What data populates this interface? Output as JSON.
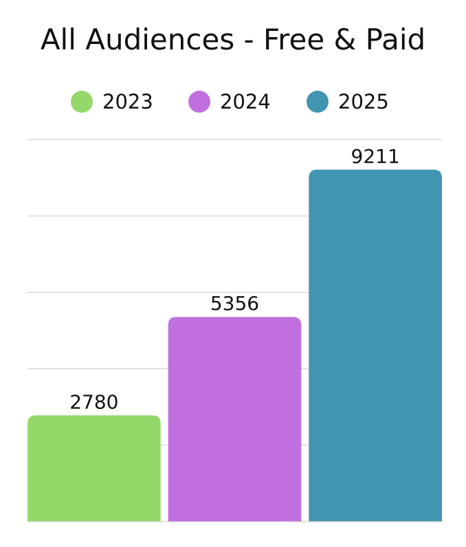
{
  "chart_data": {
    "type": "bar",
    "title": "All Audiences - Free & Paid",
    "categories": [
      "2023",
      "2024",
      "2025"
    ],
    "values": [
      2780,
      5356,
      9211
    ],
    "colors": [
      "#94d86a",
      "#c070de",
      "#4295b0"
    ],
    "legend": {
      "placement": "top",
      "entries": [
        "2023",
        "2024",
        "2025"
      ]
    },
    "ylim": [
      0,
      10000
    ],
    "grid": true,
    "data_labels": [
      "2780",
      "5356",
      "9211"
    ],
    "xlabel": "",
    "ylabel": ""
  }
}
